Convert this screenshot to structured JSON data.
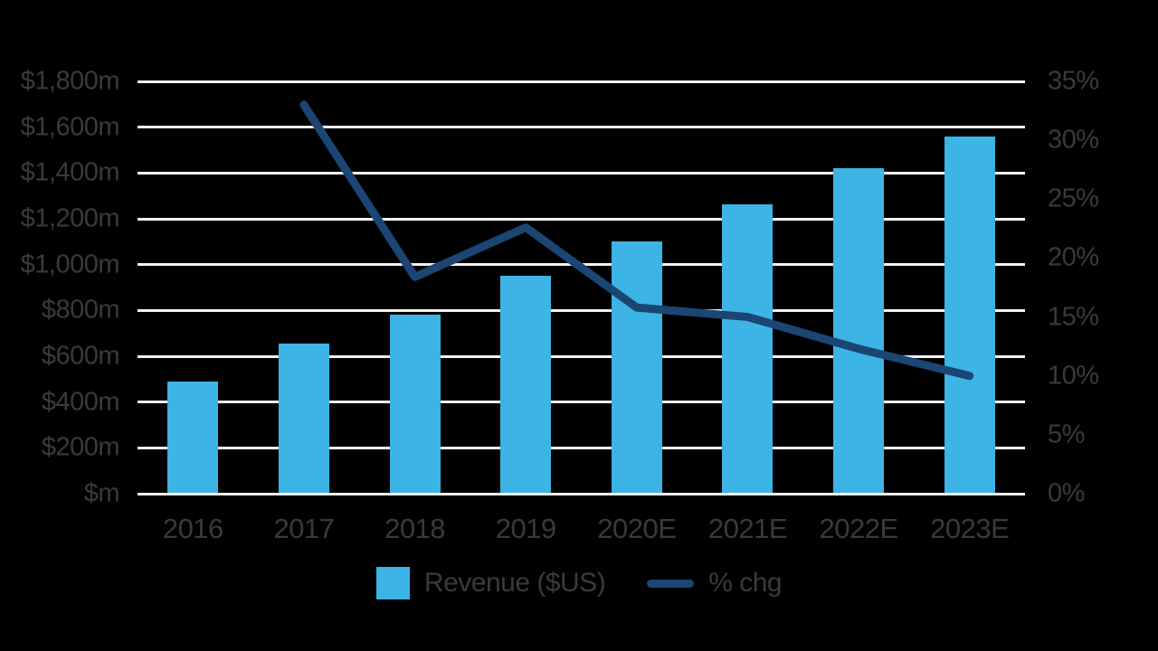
{
  "colors": {
    "background": "#000000",
    "bar_blue": "#3CB4E5",
    "line_navy": "#1B4573",
    "gridline": "#F2F2F2",
    "text": "#3A3A3C"
  },
  "chart_data": {
    "type": "combo",
    "title": "",
    "categories": [
      "2016",
      "2017",
      "2018",
      "2019",
      "2020E",
      "2021E",
      "2022E",
      "2023E"
    ],
    "series": [
      {
        "name": "Revenue ($US)",
        "type": "bar",
        "axis": "left",
        "color": "#3CB4E5",
        "values": [
          490,
          655,
          780,
          950,
          1100,
          1265,
          1420,
          1560
        ]
      },
      {
        "name": "% chg",
        "type": "line",
        "axis": "right",
        "color": "#1B4573",
        "values": [
          null,
          33,
          18.4,
          22.6,
          15.8,
          15,
          12.3,
          10
        ]
      }
    ],
    "left_axis": {
      "min": 0,
      "max": 1800,
      "step": 200,
      "ticks": [
        {
          "label": "$1,800m",
          "value": 1800
        },
        {
          "label": "$1,600m",
          "value": 1600
        },
        {
          "label": "$1,400m",
          "value": 1400
        },
        {
          "label": "$1,200m",
          "value": 1200
        },
        {
          "label": "$1,000m",
          "value": 1000
        },
        {
          "label": "$800m",
          "value": 800
        },
        {
          "label": "$600m",
          "value": 600
        },
        {
          "label": "$400m",
          "value": 400
        },
        {
          "label": "$200m",
          "value": 200
        },
        {
          "label": "$m",
          "value": 0
        }
      ]
    },
    "right_axis": {
      "min": 0,
      "max": 35,
      "step": 5,
      "ticks": [
        {
          "label": "35%",
          "value": 35
        },
        {
          "label": "30%",
          "value": 30
        },
        {
          "label": "25%",
          "value": 25
        },
        {
          "label": "20%",
          "value": 20
        },
        {
          "label": "15%",
          "value": 15
        },
        {
          "label": "10%",
          "value": 10
        },
        {
          "label": "5%",
          "value": 5
        },
        {
          "label": "0%",
          "value": 0
        }
      ]
    },
    "grid": true,
    "legend_position": "bottom"
  }
}
